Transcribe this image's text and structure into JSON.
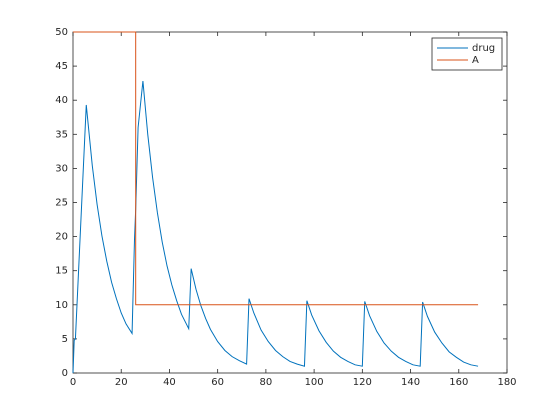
{
  "chart_data": {
    "type": "line",
    "xlim": [
      0,
      180
    ],
    "xticks": [
      0,
      20,
      40,
      60,
      80,
      100,
      120,
      140,
      160,
      180
    ],
    "ylim": [
      0,
      50
    ],
    "yticks": [
      0,
      5,
      10,
      15,
      20,
      25,
      30,
      35,
      40,
      45,
      50
    ],
    "legend": "top-right",
    "series": [
      {
        "name": "drug",
        "color": "#0072bd",
        "x": [
          0,
          0.5,
          1,
          5.5,
          8,
          10,
          12,
          14,
          16,
          18,
          20,
          22,
          24.5,
          25.5,
          26,
          27,
          29,
          31,
          33,
          35,
          37,
          39,
          41,
          43,
          45,
          48,
          49,
          51,
          53,
          55,
          57,
          60,
          63,
          66,
          69,
          72,
          73,
          75,
          78,
          81,
          84,
          87,
          90,
          93,
          96,
          97,
          99,
          102,
          105,
          108,
          111,
          114,
          117,
          120,
          121,
          123,
          126,
          129,
          132,
          135,
          138,
          141,
          144,
          145,
          147,
          150,
          153,
          156,
          159,
          162,
          165,
          168
        ],
        "values": [
          0,
          4.8,
          5,
          39.3,
          30.4,
          24.7,
          20.1,
          16.4,
          13.3,
          10.9,
          8.8,
          7.2,
          5.8,
          19.5,
          24,
          36,
          42.8,
          35,
          28.7,
          23.5,
          19.2,
          15.7,
          12.9,
          10.6,
          8.6,
          6.5,
          15.3,
          12.3,
          9.9,
          8,
          6.4,
          4.6,
          3.3,
          2.4,
          1.8,
          1.3,
          10.9,
          8.8,
          6.3,
          4.6,
          3.3,
          2.4,
          1.7,
          1.3,
          1,
          10.6,
          8.5,
          6.2,
          4.5,
          3.2,
          2.3,
          1.7,
          1.2,
          1,
          10.5,
          8.4,
          6.1,
          4.4,
          3.2,
          2.3,
          1.7,
          1.2,
          1,
          10.4,
          8.3,
          6,
          4.4,
          3.1,
          2.3,
          1.6,
          1.2,
          1
        ]
      },
      {
        "name": "A",
        "color": "#d95319",
        "x": [
          0,
          26,
          26,
          168
        ],
        "values": [
          50,
          50,
          10,
          10
        ]
      }
    ]
  }
}
